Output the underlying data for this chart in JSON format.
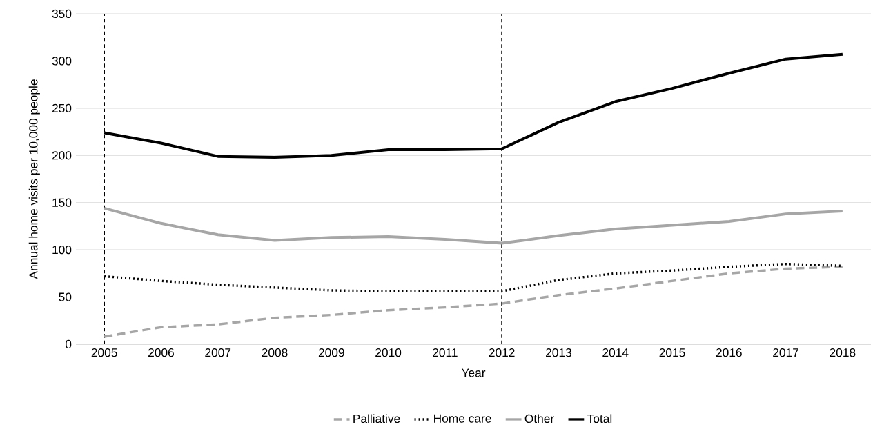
{
  "chart_data": {
    "type": "line",
    "xlabel": "Year",
    "ylabel": "Annual home visits per 10,000 people",
    "x": [
      2005,
      2006,
      2007,
      2008,
      2009,
      2010,
      2011,
      2012,
      2013,
      2014,
      2015,
      2016,
      2017,
      2018
    ],
    "xlim": [
      2004.5,
      2018.5
    ],
    "xticks": [
      2005,
      2006,
      2007,
      2008,
      2009,
      2010,
      2011,
      2012,
      2013,
      2014,
      2015,
      2016,
      2017,
      2018
    ],
    "ylim": [
      0,
      350
    ],
    "yticks": [
      0,
      50,
      100,
      150,
      200,
      250,
      300,
      350
    ],
    "grid": "y",
    "legend": "bottom",
    "marker": "none",
    "series": [
      {
        "name": "Palliative",
        "color": "#a6a6a6",
        "line_style": "dashed",
        "values": [
          8,
          18,
          21,
          28,
          31,
          36,
          39,
          43,
          52,
          59,
          67,
          75,
          80,
          82
        ]
      },
      {
        "name": "Home care",
        "color": "#000000",
        "line_style": "dotted",
        "values": [
          72,
          67,
          63,
          60,
          57,
          56,
          56,
          56,
          68,
          75,
          78,
          82,
          85,
          83
        ]
      },
      {
        "name": "Other",
        "color": "#a6a6a6",
        "line_style": "solid",
        "values": [
          144,
          128,
          116,
          110,
          113,
          114,
          111,
          107,
          115,
          122,
          126,
          130,
          138,
          141
        ]
      },
      {
        "name": "Total",
        "color": "#000000",
        "line_style": "solid",
        "values": [
          224,
          213,
          199,
          198,
          200,
          206,
          206,
          207,
          235,
          257,
          271,
          287,
          302,
          307
        ]
      }
    ],
    "ref_lines": [
      {
        "axis": "x",
        "value": 2005,
        "color": "#000000",
        "line_style": "dashed"
      },
      {
        "axis": "x",
        "value": 2012,
        "color": "#000000",
        "line_style": "dashed"
      }
    ]
  }
}
